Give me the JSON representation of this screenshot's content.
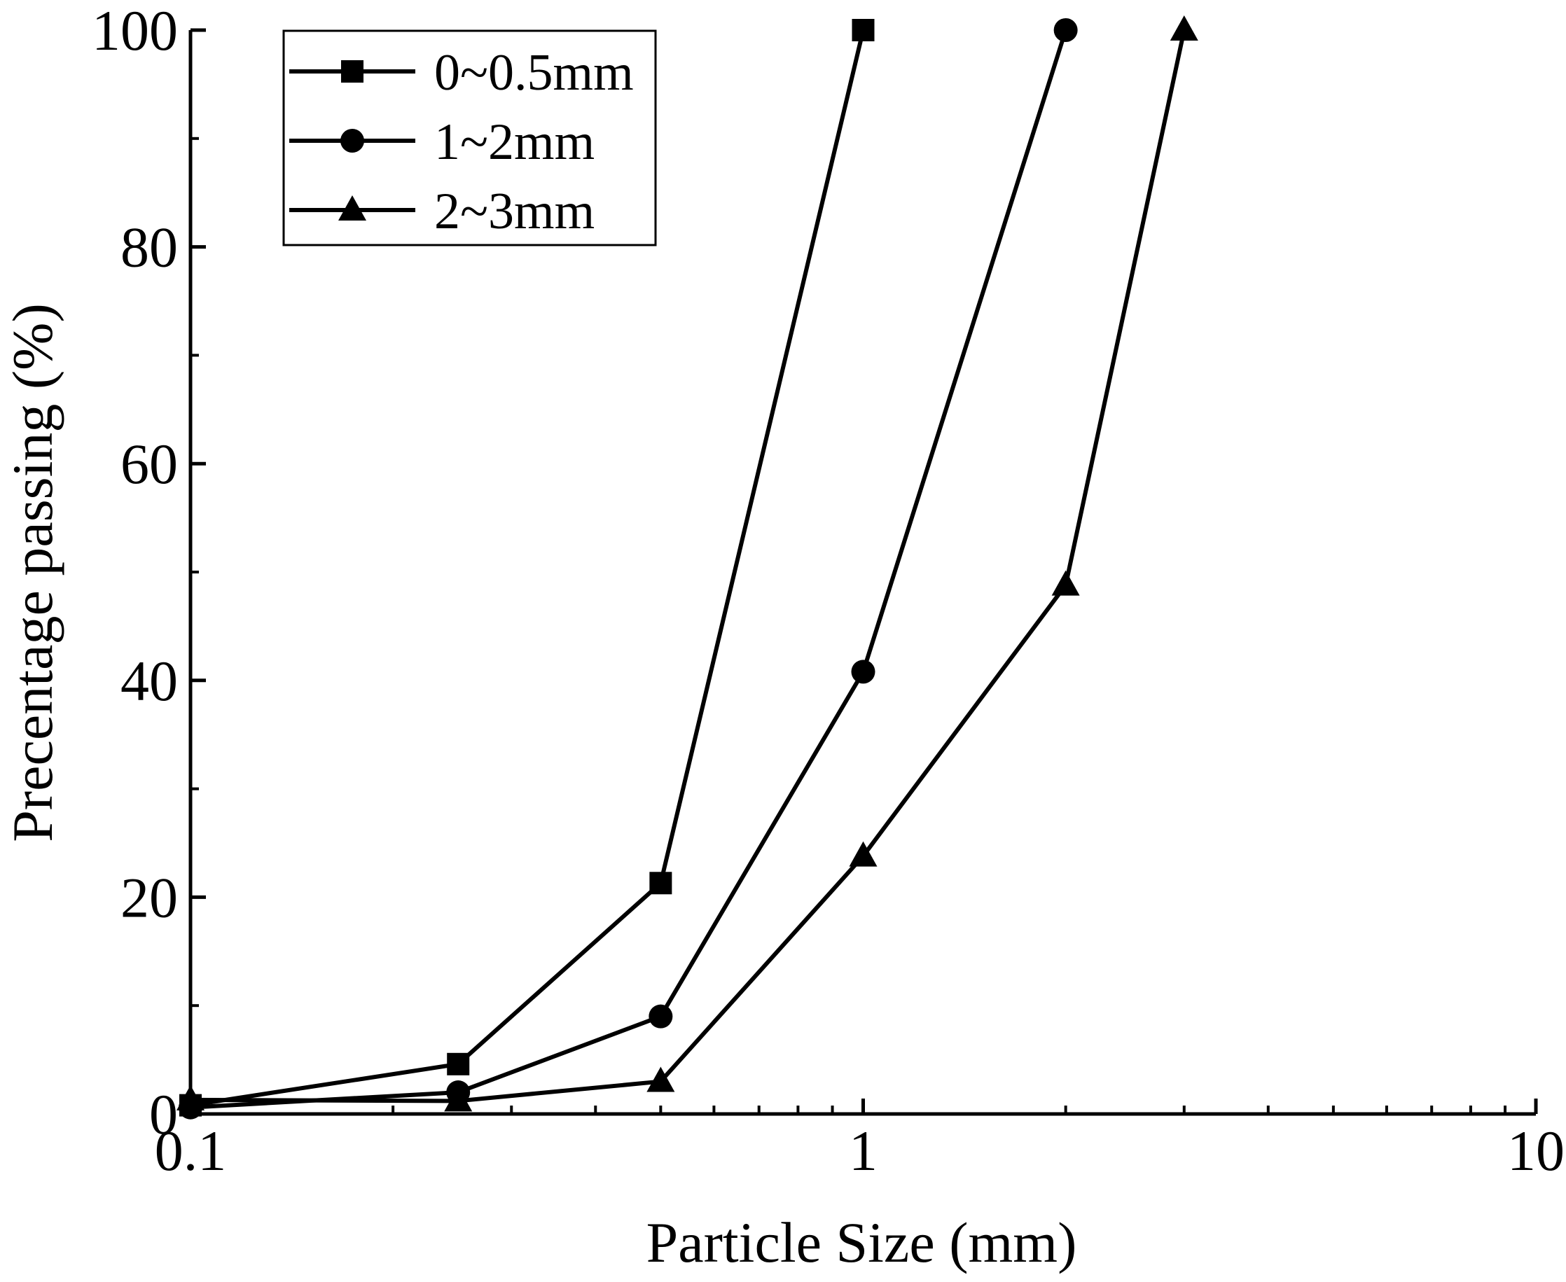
{
  "chart_data": {
    "type": "line",
    "title": "",
    "xlabel": "Particle Size (mm)",
    "ylabel": "Precentage passing (%)",
    "xscale": "log",
    "xlim": [
      0.1,
      10
    ],
    "ylim": [
      0,
      100
    ],
    "xticks": [
      0.1,
      1,
      10
    ],
    "xtick_labels": [
      "0.1",
      "1",
      "10"
    ],
    "yticks": [
      0,
      20,
      40,
      60,
      80,
      100
    ],
    "ytick_labels": [
      "0",
      "20",
      "40",
      "60",
      "80",
      "100"
    ],
    "grid": false,
    "legend_position": "top-left",
    "series": [
      {
        "name": "0~0.5mm",
        "marker": "square",
        "color": "#000000",
        "x": [
          0.1,
          0.25,
          0.5,
          1
        ],
        "y": [
          0.8,
          4.6,
          21.3,
          100
        ]
      },
      {
        "name": "1~2mm",
        "marker": "circle",
        "color": "#000000",
        "x": [
          0.1,
          0.25,
          0.5,
          1,
          2
        ],
        "y": [
          0.6,
          2.0,
          9.0,
          40.8,
          100
        ]
      },
      {
        "name": "2~3mm",
        "marker": "triangle",
        "color": "#000000",
        "x": [
          0.1,
          0.25,
          0.5,
          1,
          2,
          3
        ],
        "y": [
          1.3,
          1.2,
          3.0,
          23.8,
          48.8,
          100
        ]
      }
    ]
  }
}
